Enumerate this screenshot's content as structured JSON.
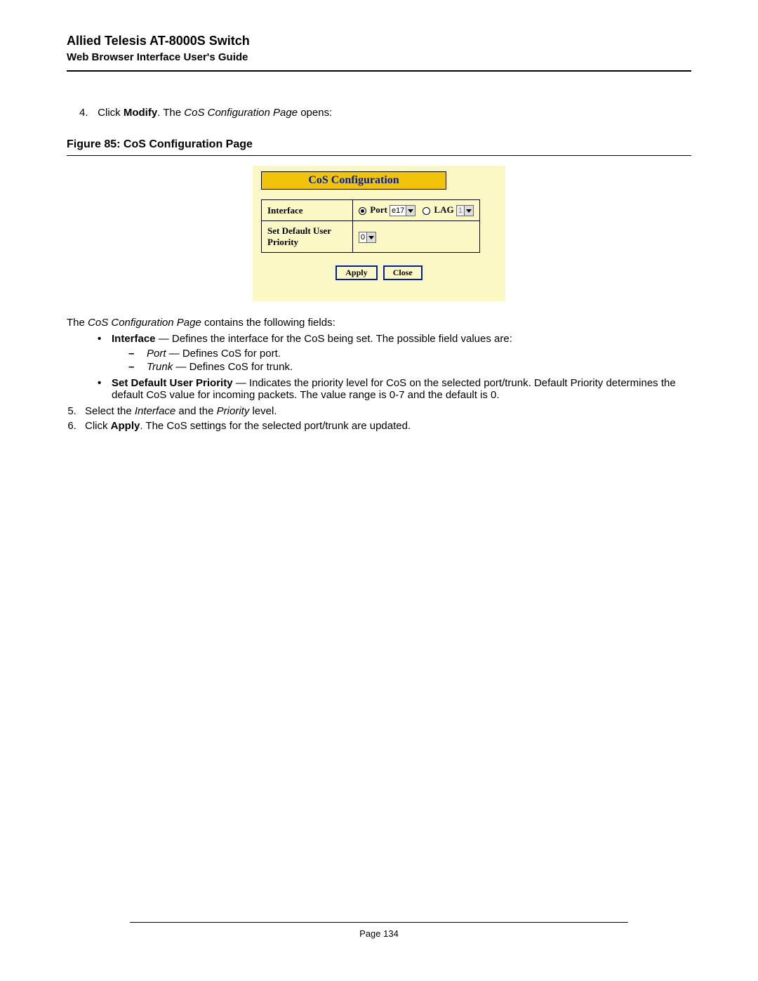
{
  "header": {
    "title": "Allied Telesis AT-8000S Switch",
    "subtitle": "Web Browser Interface User's Guide"
  },
  "step4": {
    "num": "4.",
    "pre": "Click ",
    "bold": "Modify",
    "mid": ". The ",
    "ital": "CoS Configuration Page",
    "post": " opens:"
  },
  "figure": {
    "caption": "Figure 85:  CoS Configuration Page"
  },
  "panel": {
    "title": "CoS Configuration",
    "row1_label": "Interface",
    "port_label": "Port",
    "port_value": "e17",
    "lag_label": "LAG",
    "lag_value": "1",
    "row2_label": "Set Default User Priority",
    "priority_value": "0",
    "apply": "Apply",
    "close": "Close"
  },
  "intro": {
    "pre": "The ",
    "ital": "CoS Configuration Page",
    "post": " contains the following fields:"
  },
  "field1": {
    "bold": "Interface",
    "rest": " — Defines the interface for the CoS being set. The possible field values are:"
  },
  "sub1": {
    "ital": "Port",
    "rest": " — Defines CoS for port."
  },
  "sub2": {
    "ital": "Trunk",
    "rest": " — Defines CoS for trunk."
  },
  "field2": {
    "bold": "Set Default User Priority",
    "rest": " — Indicates the priority level for CoS on the selected port/trunk. Default Priority determines the default CoS value for incoming packets. The value range is 0-7 and the default is 0."
  },
  "step5": {
    "pre": "Select the ",
    "i1": "Interface",
    "mid": " and the ",
    "i2": "Priority",
    "post": " level."
  },
  "step6": {
    "pre": "Click ",
    "bold": "Apply",
    "post": ". The CoS settings for the selected port/trunk are updated."
  },
  "footer": {
    "text": "Page 134"
  }
}
